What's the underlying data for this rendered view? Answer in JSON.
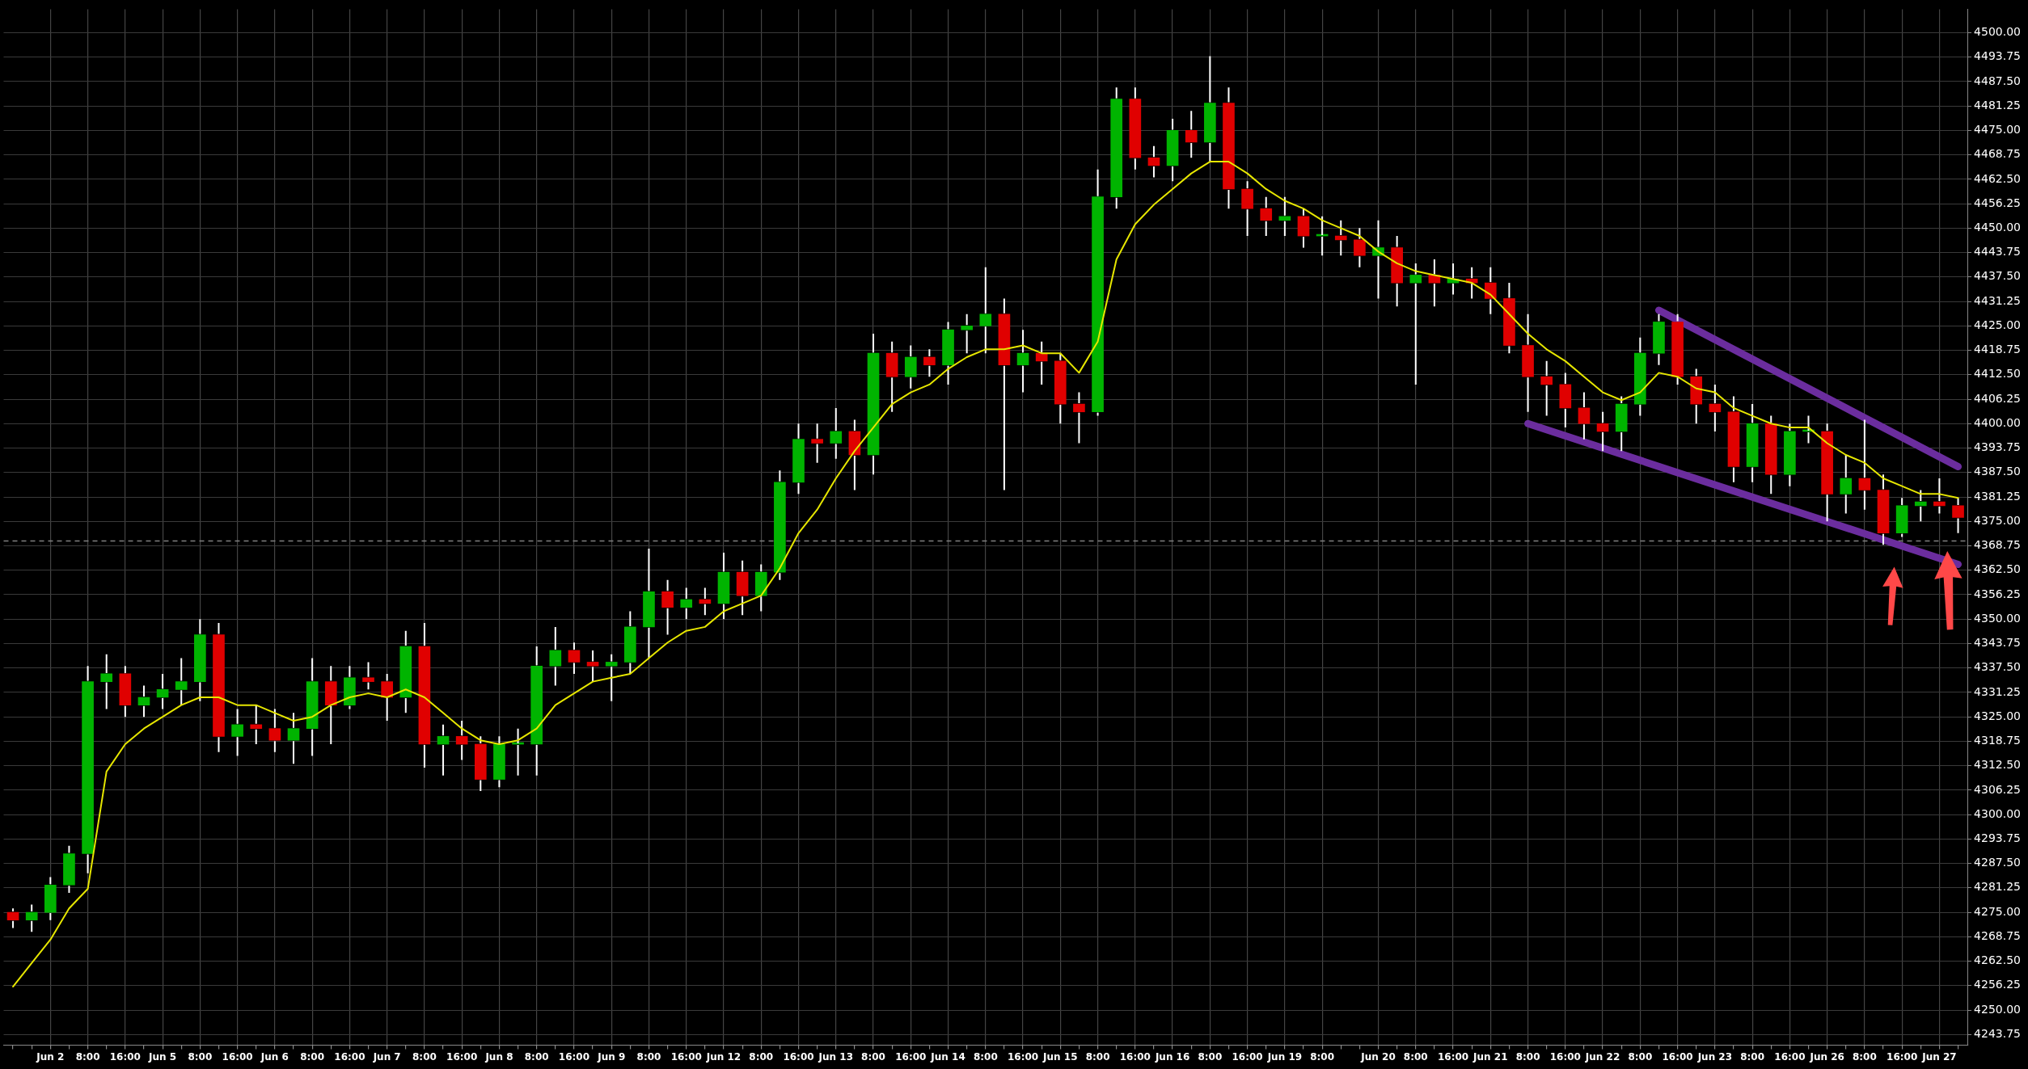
{
  "chart_data": {
    "type": "candlestick",
    "categories": [
      null,
      null,
      "Jun 2",
      null,
      "8:00",
      null,
      "16:00",
      null,
      "Jun 5",
      null,
      "8:00",
      null,
      "16:00",
      null,
      "Jun 6",
      null,
      "8:00",
      null,
      "16:00",
      null,
      "Jun 7",
      null,
      "8:00",
      null,
      "16:00",
      null,
      "Jun 8",
      null,
      "8:00",
      null,
      "16:00",
      null,
      "Jun 9",
      null,
      "8:00",
      null,
      "16:00",
      null,
      "Jun 12",
      null,
      "8:00",
      null,
      "16:00",
      null,
      "Jun 13",
      null,
      "8:00",
      null,
      "16:00",
      null,
      "Jun 14",
      null,
      "8:00",
      null,
      "16:00",
      null,
      "Jun 15",
      null,
      "8:00",
      null,
      "16:00",
      null,
      "Jun 16",
      null,
      "8:00",
      null,
      "16:00",
      null,
      "Jun 19",
      null,
      "8:00",
      null,
      null,
      "Jun 20",
      null,
      "8:00",
      null,
      "16:00",
      null,
      "Jun 21",
      null,
      "8:00",
      null,
      "16:00",
      null,
      "Jun 22",
      null,
      "8:00",
      null,
      "16:00",
      null,
      "Jun 23",
      null,
      "8:00",
      null,
      "16:00",
      null,
      "Jun 26",
      null,
      "8:00",
      null,
      "16:00",
      null,
      "Jun 27",
      null
    ],
    "ohlc": [
      [
        4275,
        4276,
        4271,
        4273
      ],
      [
        4273,
        4277,
        4270,
        4275
      ],
      [
        4275,
        4284,
        4273,
        4282
      ],
      [
        4282,
        4292,
        4280,
        4290
      ],
      [
        4290,
        4338,
        4285,
        4334
      ],
      [
        4334,
        4341,
        4327,
        4336
      ],
      [
        4336,
        4338,
        4325,
        4328
      ],
      [
        4328,
        4333,
        4325,
        4330
      ],
      [
        4330,
        4336,
        4327,
        4332
      ],
      [
        4332,
        4340,
        4328,
        4334
      ],
      [
        4334,
        4350,
        4329,
        4346
      ],
      [
        4346,
        4349,
        4316,
        4320
      ],
      [
        4320,
        4327,
        4315,
        4323
      ],
      [
        4323,
        4328,
        4318,
        4322
      ],
      [
        4322,
        4327,
        4316,
        4319
      ],
      [
        4319,
        4326,
        4313,
        4322
      ],
      [
        4322,
        4340,
        4315,
        4334
      ],
      [
        4334,
        4338,
        4318,
        4328
      ],
      [
        4328,
        4338,
        4327,
        4335
      ],
      [
        4335,
        4339,
        4332,
        4334
      ],
      [
        4334,
        4336,
        4324,
        4330
      ],
      [
        4330,
        4347,
        4326,
        4343
      ],
      [
        4343,
        4349,
        4312,
        4318
      ],
      [
        4318,
        4323,
        4310,
        4320
      ],
      [
        4320,
        4324,
        4314,
        4318
      ],
      [
        4318,
        4320,
        4306,
        4309
      ],
      [
        4309,
        4320,
        4307,
        4318
      ],
      [
        4318,
        4322,
        4310,
        4318
      ],
      [
        4318,
        4343,
        4310,
        4338
      ],
      [
        4338,
        4348,
        4333,
        4342
      ],
      [
        4342,
        4344,
        4336,
        4339
      ],
      [
        4339,
        4342,
        4334,
        4338
      ],
      [
        4338,
        4341,
        4329,
        4339
      ],
      [
        4339,
        4352,
        4336,
        4348
      ],
      [
        4348,
        4368,
        4340,
        4357
      ],
      [
        4357,
        4360,
        4346,
        4353
      ],
      [
        4353,
        4358,
        4350,
        4355
      ],
      [
        4355,
        4358,
        4351,
        4354
      ],
      [
        4354,
        4367,
        4350,
        4362
      ],
      [
        4362,
        4365,
        4351,
        4356
      ],
      [
        4356,
        4364,
        4352,
        4362
      ],
      [
        4362,
        4388,
        4360,
        4385
      ],
      [
        4385,
        4400,
        4382,
        4396
      ],
      [
        4396,
        4400,
        4390,
        4395
      ],
      [
        4395,
        4404,
        4391,
        4398
      ],
      [
        4398,
        4401,
        4383,
        4392
      ],
      [
        4392,
        4423,
        4387,
        4418
      ],
      [
        4418,
        4421,
        4403,
        4412
      ],
      [
        4412,
        4420,
        4409,
        4417
      ],
      [
        4417,
        4419,
        4412,
        4415
      ],
      [
        4415,
        4426,
        4410,
        4424
      ],
      [
        4424,
        4428,
        4418,
        4425
      ],
      [
        4425,
        4440,
        4418,
        4428
      ],
      [
        4428,
        4432,
        4383,
        4415
      ],
      [
        4415,
        4424,
        4408,
        4418
      ],
      [
        4418,
        4421,
        4410,
        4416
      ],
      [
        4416,
        4418,
        4400,
        4405
      ],
      [
        4405,
        4408,
        4395,
        4403
      ],
      [
        4403,
        4465,
        4402,
        4458
      ],
      [
        4458,
        4486,
        4455,
        4483
      ],
      [
        4483,
        4486,
        4465,
        4468
      ],
      [
        4468,
        4471,
        4463,
        4466
      ],
      [
        4466,
        4478,
        4462,
        4475
      ],
      [
        4475,
        4480,
        4468,
        4472
      ],
      [
        4472,
        4494,
        4467,
        4482
      ],
      [
        4482,
        4486,
        4455,
        4460
      ],
      [
        4460,
        4462,
        4448,
        4455
      ],
      [
        4455,
        4458,
        4448,
        4452
      ],
      [
        4452,
        4458,
        4448,
        4453
      ],
      [
        4453,
        4455,
        4445,
        4448
      ],
      [
        4448,
        4453,
        4443,
        4448
      ],
      [
        4448,
        4452,
        4443,
        4447
      ],
      [
        4447,
        4450,
        4440,
        4443
      ],
      [
        4443,
        4452,
        4432,
        4445
      ],
      [
        4445,
        4448,
        4430,
        4436
      ],
      [
        4436,
        4441,
        4410,
        4438
      ],
      [
        4438,
        4442,
        4430,
        4436
      ],
      [
        4436,
        4441,
        4433,
        4437
      ],
      [
        4437,
        4440,
        4432,
        4436
      ],
      [
        4436,
        4440,
        4428,
        4432
      ],
      [
        4432,
        4436,
        4418,
        4420
      ],
      [
        4420,
        4428,
        4403,
        4412
      ],
      [
        4412,
        4416,
        4402,
        4410
      ],
      [
        4410,
        4413,
        4399,
        4404
      ],
      [
        4404,
        4408,
        4396,
        4400
      ],
      [
        4400,
        4403,
        4393,
        4398
      ],
      [
        4398,
        4407,
        4393,
        4405
      ],
      [
        4405,
        4422,
        4402,
        4418
      ],
      [
        4418,
        4428,
        4415,
        4426
      ],
      [
        4426,
        4428,
        4410,
        4412
      ],
      [
        4412,
        4414,
        4400,
        4405
      ],
      [
        4405,
        4410,
        4398,
        4403
      ],
      [
        4403,
        4407,
        4385,
        4389
      ],
      [
        4389,
        4405,
        4385,
        4400
      ],
      [
        4400,
        4402,
        4382,
        4387
      ],
      [
        4387,
        4400,
        4384,
        4398
      ],
      [
        4398,
        4402,
        4395,
        4398
      ],
      [
        4398,
        4400,
        4375,
        4382
      ],
      [
        4382,
        4392,
        4377,
        4386
      ],
      [
        4386,
        4401,
        4378,
        4383
      ],
      [
        4383,
        4387,
        4369,
        4372
      ],
      [
        4372,
        4381,
        4371,
        4379
      ],
      [
        4379,
        4383,
        4375,
        4380
      ],
      [
        4380,
        4386,
        4377,
        4379
      ],
      [
        4379,
        4381,
        4372,
        4376
      ]
    ],
    "series": [
      {
        "type": "line",
        "color": "#e6e600",
        "values": [
          4256,
          4262,
          4268,
          4276,
          4281,
          4311,
          4318,
          4322,
          4325,
          4328,
          4330,
          4330,
          4328,
          4328,
          4326,
          4324,
          4325,
          4328,
          4330,
          4331,
          4330,
          4332,
          4330,
          4326,
          4322,
          4319,
          4318,
          4319,
          4322,
          4328,
          4331,
          4334,
          4335,
          4336,
          4340,
          4344,
          4347,
          4348,
          4352,
          4354,
          4356,
          4363,
          4372,
          4378,
          4386,
          4393,
          4399,
          4405,
          4408,
          4410,
          4414,
          4417,
          4419,
          4419,
          4420,
          4418,
          4418,
          4413,
          4421,
          4442,
          4451,
          4456,
          4460,
          4464,
          4467,
          4467,
          4464,
          4460,
          4457,
          4455,
          4452,
          4450,
          4448,
          4444,
          4441,
          4439,
          4438,
          4437,
          4436,
          4433,
          4428,
          4423,
          4419,
          4416,
          4412,
          4408,
          4406,
          4408,
          4413,
          4412,
          4409,
          4408,
          4404,
          4402,
          4400,
          4399,
          4399,
          4395,
          4392,
          4390,
          4386,
          4384,
          4382,
          4382,
          4381
        ]
      },
      {
        "type": "line",
        "color": "#6b2d9e",
        "values": [
          null,
          null,
          null,
          null,
          null,
          null,
          null,
          null,
          null,
          null,
          null,
          null,
          null,
          null,
          null,
          null,
          null,
          null,
          null,
          null,
          null,
          null,
          null,
          null,
          null,
          null,
          null,
          null,
          null,
          null,
          null,
          null,
          null,
          null,
          null,
          null,
          null,
          null,
          null,
          null,
          null,
          null,
          null,
          null,
          null,
          null,
          null,
          null,
          null,
          null,
          null,
          null,
          null,
          null,
          null,
          null,
          null,
          null,
          null,
          null,
          null,
          null,
          null,
          null,
          null,
          null,
          null,
          null,
          null,
          null,
          null,
          null,
          null,
          null,
          null,
          null,
          null,
          null,
          null,
          null,
          null,
          null,
          null,
          null,
          null,
          null,
          null,
          null,
          4429,
          null,
          null,
          null,
          null,
          null,
          null,
          null,
          null,
          null,
          null,
          null,
          null,
          null,
          null,
          null,
          4389
        ]
      },
      {
        "type": "line",
        "color": "#6b2d9e",
        "values": [
          null,
          null,
          null,
          null,
          null,
          null,
          null,
          null,
          null,
          null,
          null,
          null,
          null,
          null,
          null,
          null,
          null,
          null,
          null,
          null,
          null,
          null,
          null,
          null,
          null,
          null,
          null,
          null,
          null,
          null,
          null,
          null,
          null,
          null,
          null,
          null,
          null,
          null,
          null,
          null,
          null,
          null,
          null,
          null,
          null,
          null,
          null,
          null,
          null,
          null,
          null,
          null,
          null,
          null,
          null,
          null,
          null,
          null,
          null,
          null,
          null,
          null,
          null,
          null,
          null,
          null,
          null,
          null,
          null,
          null,
          null,
          null,
          null,
          null,
          null,
          null,
          null,
          null,
          null,
          null,
          null,
          4400,
          null,
          null,
          null,
          null,
          null,
          null,
          null,
          null,
          null,
          null,
          null,
          null,
          null,
          null,
          null,
          null,
          null,
          null,
          null,
          null,
          null,
          null,
          4364
        ]
      }
    ],
    "ylim": [
      4241,
      4506
    ],
    "yticks": [
      {
        "value": 4243.75,
        "label": "4243.75"
      },
      {
        "value": 4250,
        "label": "4250.00"
      },
      {
        "value": 4256.25,
        "label": "4256.25"
      },
      {
        "value": 4262.5,
        "label": "4262.50"
      },
      {
        "value": 4268.75,
        "label": "4268.75"
      },
      {
        "value": 4275,
        "label": "4275.00"
      },
      {
        "value": 4281.25,
        "label": "4281.25"
      },
      {
        "value": 4287.5,
        "label": "4287.50"
      },
      {
        "value": 4293.75,
        "label": "4293.75"
      },
      {
        "value": 4300,
        "label": "4300.00"
      },
      {
        "value": 4306.25,
        "label": "4306.25"
      },
      {
        "value": 4312.5,
        "label": "4312.50"
      },
      {
        "value": 4318.75,
        "label": "4318.75"
      },
      {
        "value": 4325,
        "label": "4325.00"
      },
      {
        "value": 4331.25,
        "label": "4331.25"
      },
      {
        "value": 4337.5,
        "label": "4337.50"
      },
      {
        "value": 4343.75,
        "label": "4343.75"
      },
      {
        "value": 4350,
        "label": "4350.00"
      },
      {
        "value": 4356.25,
        "label": "4356.25"
      },
      {
        "value": 4362.5,
        "label": "4362.50"
      },
      {
        "value": 4368.75,
        "label": "4368.75"
      },
      {
        "value": 4375,
        "label": "4375.00"
      },
      {
        "value": 4381.25,
        "label": "4381.25"
      },
      {
        "value": 4387.5,
        "label": "4387.50"
      },
      {
        "value": 4393.75,
        "label": "4393.75"
      },
      {
        "value": 4400,
        "label": "4400.00"
      },
      {
        "value": 4406.25,
        "label": "4406.25"
      },
      {
        "value": 4412.5,
        "label": "4412.50"
      },
      {
        "value": 4418.75,
        "label": "4418.75"
      },
      {
        "value": 4425,
        "label": "4425.00"
      },
      {
        "value": 4431.25,
        "label": "4431.25"
      },
      {
        "value": 4437.5,
        "label": "4437.50"
      },
      {
        "value": 4443.75,
        "label": "4443.75"
      },
      {
        "value": 4450,
        "label": "4450.00"
      },
      {
        "value": 4456.25,
        "label": "4456.25"
      },
      {
        "value": 4462.5,
        "label": "4462.50"
      },
      {
        "value": 4468.75,
        "label": "4468.75"
      },
      {
        "value": 4475,
        "label": "4475.00"
      },
      {
        "value": 4481.25,
        "label": "4481.25"
      },
      {
        "value": 4487.5,
        "label": "4487.50"
      },
      {
        "value": 4493.75,
        "label": "4493.75"
      },
      {
        "value": 4500,
        "label": "4500.00"
      }
    ],
    "grid": true,
    "ref_lines": [
      {
        "axis": "y",
        "value": 4370,
        "color": "#808080",
        "line_style": "dashed"
      }
    ]
  }
}
